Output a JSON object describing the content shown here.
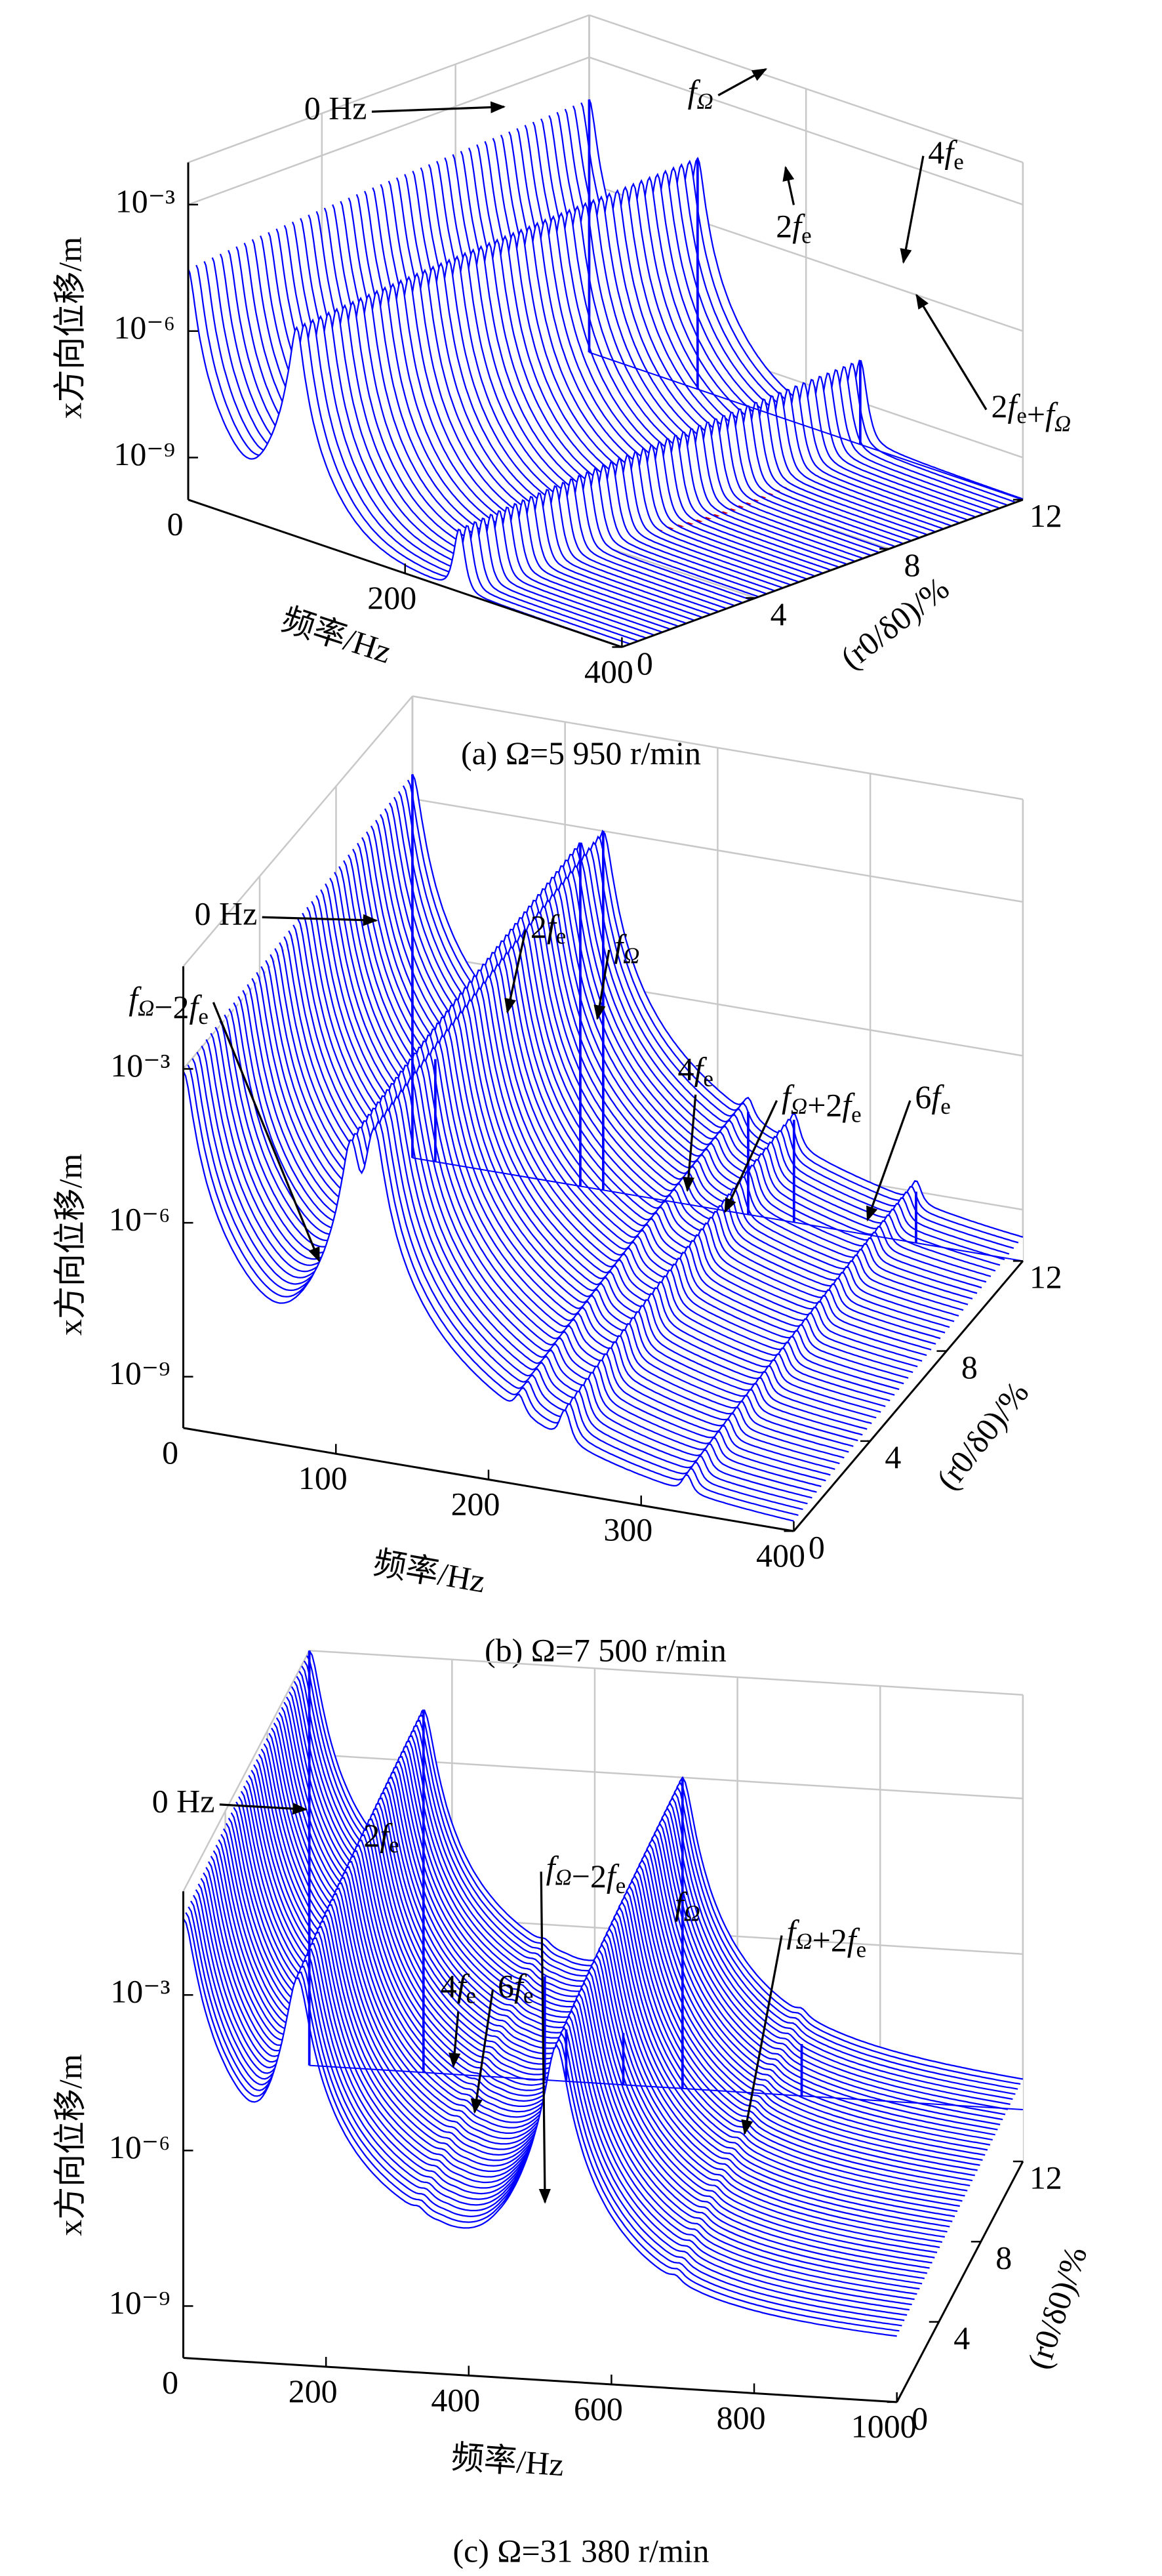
{
  "chart_data": [
    {
      "type": "waterfall",
      "title": "(a) Ω=5 950 r/min",
      "xlabel": "频率/Hz",
      "ylabel": "(r0/δ0)/%",
      "zlabel": "x方向位移/m",
      "xlim": [
        0,
        400
      ],
      "xticks": [
        0,
        200,
        400
      ],
      "ylim": [
        0,
        12
      ],
      "yticks": [
        0,
        4,
        8,
        12
      ],
      "zlim": [
        1e-10,
        0.01
      ],
      "zscale": "log",
      "zticks": [
        {
          "value": 1e-09,
          "label": "10⁻⁹"
        },
        {
          "value": 1e-06,
          "label": "10⁻⁶"
        },
        {
          "value": 0.001,
          "label": "10⁻³"
        }
      ],
      "grid": true,
      "color": "#0000ff",
      "floor": 1e-10,
      "peaks": [
        {
          "x": 0,
          "z": 0.0001
        },
        {
          "x": 100,
          "z": 3e-05
        },
        {
          "x": 250,
          "z": 1e-08
        }
      ],
      "annotations": [
        "0 Hz",
        "fΩ",
        "2fe",
        "4fe",
        "2fe+fΩ"
      ]
    },
    {
      "type": "waterfall",
      "title": "(b) Ω=7 500 r/min",
      "xlabel": "频率/Hz",
      "ylabel": "(r0/δ0)/%",
      "zlabel": "x方向位移/m",
      "xlim": [
        0,
        400
      ],
      "xticks": [
        0,
        100,
        200,
        300,
        400
      ],
      "ylim": [
        0,
        12
      ],
      "yticks": [
        0,
        4,
        8,
        12
      ],
      "zlim": [
        1e-10,
        0.1
      ],
      "zscale": "log",
      "zticks": [
        {
          "value": 1e-09,
          "label": "10⁻⁹"
        },
        {
          "value": 1e-06,
          "label": "10⁻⁶"
        },
        {
          "value": 0.001,
          "label": "10⁻³"
        }
      ],
      "grid": true,
      "color": "#0000ff",
      "floor": 1e-10,
      "peaks": [
        {
          "x": 0,
          "z": 0.003
        },
        {
          "x": 15,
          "z": 1e-08
        },
        {
          "x": 110,
          "z": 0.0005
        },
        {
          "x": 125,
          "z": 0.001
        },
        {
          "x": 220,
          "z": 1e-08
        },
        {
          "x": 250,
          "z": 1e-08
        },
        {
          "x": 330,
          "z": 1e-09
        }
      ],
      "annotations": [
        "0 Hz",
        "fΩ−2fe",
        "2fe",
        "fΩ",
        "4fe",
        "fΩ+2fe",
        "6fe"
      ]
    },
    {
      "type": "waterfall",
      "title": "(c) Ω=31 380 r/min",
      "xlabel": "频率/Hz",
      "ylabel": "(r0/δ0)/%",
      "zlabel": "x方向位移/m",
      "xlim": [
        0,
        1000
      ],
      "xticks": [
        0,
        200,
        400,
        600,
        800,
        1000
      ],
      "ylim": [
        0,
        12
      ],
      "yticks": [
        0,
        4,
        8,
        12
      ],
      "zlim": [
        1e-10,
        0.1
      ],
      "zscale": "log",
      "zticks": [
        {
          "value": 1e-09,
          "label": "10⁻⁹"
        },
        {
          "value": 1e-06,
          "label": "10⁻⁶"
        },
        {
          "value": 0.001,
          "label": "10⁻³"
        }
      ],
      "grid": true,
      "color": "#0000ff",
      "floor": 1e-09,
      "peaks": [
        {
          "x": 0,
          "z": 0.1
        },
        {
          "x": 160,
          "z": 0.01
        },
        {
          "x": 330,
          "z": 1e-07
        },
        {
          "x": 360,
          "z": 1e-08
        },
        {
          "x": 440,
          "z": 1e-08
        },
        {
          "x": 523,
          "z": 0.001
        },
        {
          "x": 690,
          "z": 1e-08
        }
      ],
      "annotations": [
        "0 Hz",
        "2fe",
        "4fe",
        "6fe",
        "fΩ−2fe",
        "fΩ",
        "fΩ+2fe"
      ]
    }
  ]
}
